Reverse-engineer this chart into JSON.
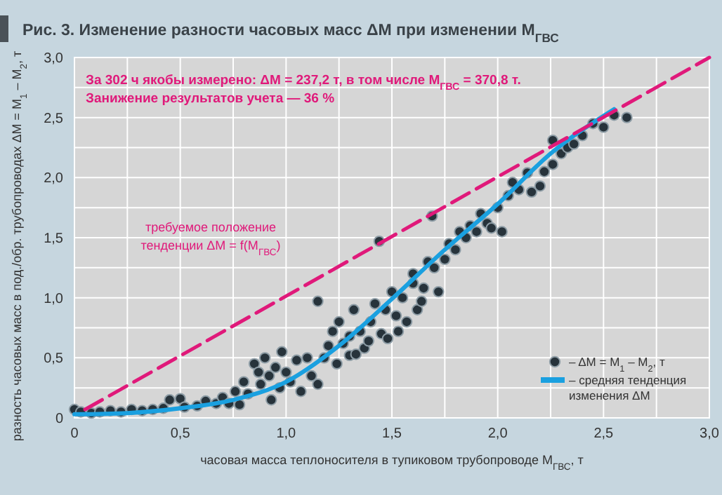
{
  "chart_data": {
    "type": "scatter",
    "title": "Рис. 3. Изменение разности часовых масс ΔM при изменении M$_{ГВС}$",
    "xlabel": "часовая масса теплоносителя в тупиковом трубопроводе M$_{ГВС}$, т",
    "ylabel": "разность часовых масс в под./обр. трубопроводах ΔM = M$_{1}$ – M$_{2}$, т",
    "annotations": [
      "За 302 ч якобы измерено: ΔM = 237,2 т, в том числе M$_{ГВС}$ = 370,8 т.",
      "Занижение результатов учета — 36 %",
      "требуемое положение",
      "тенденции ΔM = f(M$_{ГВС}$)"
    ],
    "xlim": [
      0,
      3.0
    ],
    "ylim": [
      0,
      3.0
    ],
    "xticks": [
      {
        "value": 0,
        "label": "0"
      },
      {
        "value": 0.25,
        "label": null
      },
      {
        "value": 0.5,
        "label": "0,5"
      },
      {
        "value": 0.75,
        "label": null
      },
      {
        "value": 1.0,
        "label": "1,0"
      },
      {
        "value": 1.25,
        "label": null
      },
      {
        "value": 1.5,
        "label": "1,5"
      },
      {
        "value": 1.75,
        "label": null
      },
      {
        "value": 2.0,
        "label": "2,0"
      },
      {
        "value": 2.25,
        "label": null
      },
      {
        "value": 2.5,
        "label": "2,5"
      },
      {
        "value": 2.75,
        "label": null
      },
      {
        "value": 3.0,
        "label": "3,0"
      }
    ],
    "yticks": [
      {
        "value": 0,
        "label": "0"
      },
      {
        "value": 0.25,
        "label": null
      },
      {
        "value": 0.5,
        "label": "0,5"
      },
      {
        "value": 0.75,
        "label": null
      },
      {
        "value": 1.0,
        "label": "1,0"
      },
      {
        "value": 1.25,
        "label": null
      },
      {
        "value": 1.5,
        "label": "1,5"
      },
      {
        "value": 1.75,
        "label": null
      },
      {
        "value": 2.0,
        "label": "2,0"
      },
      {
        "value": 2.25,
        "label": null
      },
      {
        "value": 2.5,
        "label": "2,5"
      },
      {
        "value": 2.75,
        "label": null
      },
      {
        "value": 3.0,
        "label": "3,0"
      }
    ],
    "grid": true,
    "legend": "bottom right",
    "series": [
      {
        "name": "– ΔM = M$_{1}$ – M$_{2}$, т",
        "color": "#27333b",
        "marker": "circle",
        "x": [
          0,
          0.03,
          0.08,
          0.12,
          0.17,
          0.22,
          0.27,
          0.32,
          0.37,
          0.42,
          0.45,
          0.5,
          0.52,
          0.58,
          0.62,
          0.67,
          0.7,
          0.73,
          0.76,
          0.78,
          0.8,
          0.82,
          0.85,
          0.87,
          0.88,
          0.9,
          0.92,
          0.93,
          0.95,
          0.97,
          0.98,
          1.0,
          1.02,
          1.05,
          1.07,
          1.1,
          1.12,
          1.15,
          1.15,
          1.18,
          1.2,
          1.22,
          1.24,
          1.25,
          1.27,
          1.3,
          1.3,
          1.32,
          1.33,
          1.35,
          1.37,
          1.39,
          1.4,
          1.42,
          1.44,
          1.45,
          1.47,
          1.48,
          1.5,
          1.52,
          1.53,
          1.55,
          1.57,
          1.6,
          1.6,
          1.62,
          1.64,
          1.65,
          1.67,
          1.69,
          1.7,
          1.72,
          1.75,
          1.77,
          1.8,
          1.82,
          1.85,
          1.87,
          1.9,
          1.92,
          1.95,
          1.97,
          2.0,
          2.02,
          2.05,
          2.07,
          2.1,
          2.14,
          2.16,
          2.2,
          2.22,
          2.26,
          2.26,
          2.3,
          2.33,
          2.36,
          2.4,
          2.45,
          2.5,
          2.55,
          2.61
        ],
        "values": [
          0.07,
          0.05,
          0.04,
          0.05,
          0.06,
          0.05,
          0.07,
          0.06,
          0.07,
          0.08,
          0.15,
          0.16,
          0.09,
          0.1,
          0.14,
          0.12,
          0.17,
          0.12,
          0.22,
          0.11,
          0.3,
          0.2,
          0.45,
          0.38,
          0.28,
          0.5,
          0.35,
          0.15,
          0.42,
          0.25,
          0.55,
          0.38,
          0.3,
          0.48,
          0.22,
          0.5,
          0.35,
          0.97,
          0.28,
          0.5,
          0.6,
          0.72,
          0.45,
          0.8,
          0.62,
          0.52,
          0.68,
          0.9,
          0.53,
          0.72,
          0.58,
          0.64,
          0.8,
          0.95,
          1.47,
          0.7,
          0.9,
          0.66,
          1.05,
          0.85,
          0.72,
          1.0,
          0.8,
          1.12,
          1.2,
          0.9,
          0.97,
          1.08,
          1.3,
          1.68,
          1.25,
          1.05,
          1.32,
          1.45,
          1.4,
          1.55,
          1.5,
          1.6,
          1.55,
          1.7,
          1.62,
          1.58,
          1.75,
          1.55,
          1.85,
          1.96,
          1.9,
          2.04,
          1.88,
          1.93,
          2.05,
          2.11,
          2.31,
          2.2,
          2.25,
          2.28,
          2.35,
          2.45,
          2.42,
          2.52,
          2.5
        ]
      },
      {
        "name": "– средняя тенденция изменения ΔM",
        "type": "line",
        "color": "#1aa0e0",
        "line_style": "solid",
        "x": [
          0,
          0.25,
          0.5,
          0.75,
          1.0,
          1.25,
          1.5,
          1.75,
          2.0,
          2.25,
          2.55
        ],
        "values": [
          0.03,
          0.04,
          0.08,
          0.15,
          0.3,
          0.6,
          0.99,
          1.4,
          1.78,
          2.2,
          2.57
        ]
      },
      {
        "type": "line",
        "color": "#e0197a",
        "line_style": "dashed",
        "x": [
          0.05,
          3.0
        ],
        "values": [
          0.07,
          3.0
        ]
      }
    ]
  }
}
